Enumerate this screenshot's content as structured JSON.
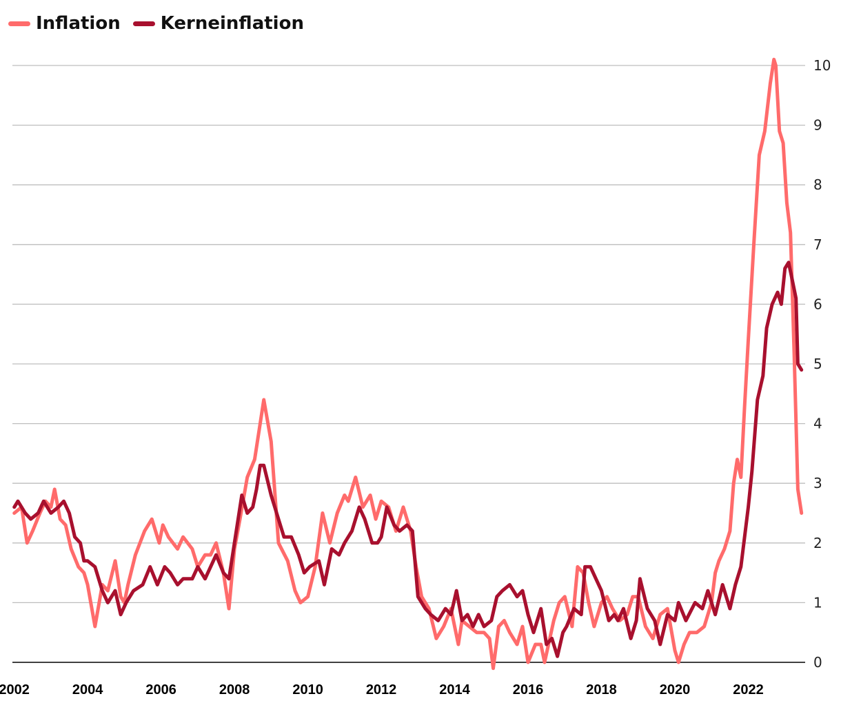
{
  "legend": {
    "inflation_label": "Inflation",
    "core_label": "Kerneinflation"
  },
  "colors": {
    "inflation": "#ff6b6b",
    "core": "#a8102e",
    "grid": "#bdbdbd",
    "axis": "#000000"
  },
  "chart_data": {
    "type": "line",
    "title": "",
    "xlabel": "",
    "ylabel": "",
    "xlim": [
      2001.95,
      2023.55
    ],
    "ylim": [
      0,
      10
    ],
    "x_ticks": [
      "2002",
      "2004",
      "2006",
      "2008",
      "2010",
      "2012",
      "2014",
      "2016",
      "2018",
      "2020",
      "2022"
    ],
    "y_ticks": [
      "0",
      "1",
      "2",
      "3",
      "4",
      "5",
      "6",
      "7",
      "8",
      "9",
      "10"
    ],
    "grid": true,
    "legend_position": "top-left",
    "series": [
      {
        "name": "Inflation",
        "x": [
          2002.0,
          2002.2,
          2002.35,
          2002.5,
          2002.7,
          2002.85,
          2003.0,
          2003.1,
          2003.25,
          2003.4,
          2003.55,
          2003.75,
          2003.9,
          2004.0,
          2004.2,
          2004.4,
          2004.55,
          2004.75,
          2004.9,
          2005.0,
          2005.1,
          2005.3,
          2005.55,
          2005.75,
          2005.95,
          2006.05,
          2006.2,
          2006.45,
          2006.6,
          2006.85,
          2007.0,
          2007.2,
          2007.35,
          2007.5,
          2007.7,
          2007.85,
          2008.0,
          2008.15,
          2008.35,
          2008.55,
          2008.7,
          2008.8,
          2009.0,
          2009.2,
          2009.45,
          2009.65,
          2009.8,
          2010.0,
          2010.2,
          2010.4,
          2010.6,
          2010.8,
          2011.0,
          2011.1,
          2011.3,
          2011.5,
          2011.7,
          2011.85,
          2012.0,
          2012.2,
          2012.4,
          2012.6,
          2012.8,
          2012.95,
          2013.1,
          2013.3,
          2013.5,
          2013.7,
          2013.9,
          2014.1,
          2014.2,
          2014.4,
          2014.6,
          2014.8,
          2014.95,
          2015.05,
          2015.2,
          2015.35,
          2015.5,
          2015.7,
          2015.85,
          2016.0,
          2016.2,
          2016.35,
          2016.45,
          2016.7,
          2016.85,
          2017.0,
          2017.2,
          2017.35,
          2017.5,
          2017.65,
          2017.8,
          2018.0,
          2018.15,
          2018.3,
          2018.5,
          2018.7,
          2018.85,
          2019.0,
          2019.2,
          2019.4,
          2019.6,
          2019.8,
          2020.0,
          2020.1,
          2020.25,
          2020.4,
          2020.6,
          2020.8,
          2021.0,
          2021.1,
          2021.2,
          2021.35,
          2021.5,
          2021.6,
          2021.7,
          2021.8,
          2021.9,
          2022.0,
          2022.15,
          2022.3,
          2022.45,
          2022.6,
          2022.7,
          2022.75,
          2022.85,
          2022.95,
          2023.05,
          2023.15,
          2023.25,
          2023.35,
          2023.45
        ],
        "values": [
          2.5,
          2.6,
          2.0,
          2.2,
          2.5,
          2.7,
          2.6,
          2.9,
          2.4,
          2.3,
          1.9,
          1.6,
          1.5,
          1.3,
          0.6,
          1.3,
          1.2,
          1.7,
          1.1,
          1.0,
          1.3,
          1.8,
          2.2,
          2.4,
          2.0,
          2.3,
          2.1,
          1.9,
          2.1,
          1.9,
          1.6,
          1.8,
          1.8,
          2.0,
          1.5,
          0.9,
          1.9,
          2.4,
          3.1,
          3.4,
          4.0,
          4.4,
          3.7,
          2.0,
          1.7,
          1.2,
          1.0,
          1.1,
          1.6,
          2.5,
          2.0,
          2.5,
          2.8,
          2.7,
          3.1,
          2.6,
          2.8,
          2.4,
          2.7,
          2.6,
          2.2,
          2.6,
          2.2,
          1.6,
          1.1,
          0.9,
          0.4,
          0.6,
          0.9,
          0.3,
          0.7,
          0.6,
          0.5,
          0.5,
          0.4,
          -0.1,
          0.6,
          0.7,
          0.5,
          0.3,
          0.6,
          0.0,
          0.3,
          0.3,
          0.0,
          0.7,
          1.0,
          1.1,
          0.6,
          1.6,
          1.5,
          1.0,
          0.6,
          1.0,
          1.1,
          0.9,
          0.7,
          0.8,
          1.1,
          1.1,
          0.6,
          0.4,
          0.8,
          0.9,
          0.2,
          0.0,
          0.3,
          0.5,
          0.5,
          0.6,
          1.0,
          1.5,
          1.7,
          1.9,
          2.2,
          3.0,
          3.4,
          3.1,
          4.3,
          5.4,
          7.0,
          8.5,
          8.9,
          9.7,
          10.1,
          10.0,
          8.9,
          8.7,
          7.7,
          7.2,
          5.2,
          2.9,
          2.5
        ]
      },
      {
        "name": "Kerneinflation",
        "x": [
          2002.0,
          2002.1,
          2002.3,
          2002.45,
          2002.65,
          2002.8,
          2003.0,
          2003.2,
          2003.35,
          2003.5,
          2003.65,
          2003.8,
          2003.9,
          2004.0,
          2004.2,
          2004.4,
          2004.55,
          2004.75,
          2004.9,
          2005.05,
          2005.25,
          2005.5,
          2005.7,
          2005.9,
          2006.1,
          2006.25,
          2006.45,
          2006.6,
          2006.85,
          2007.0,
          2007.2,
          2007.35,
          2007.5,
          2007.7,
          2007.85,
          2008.0,
          2008.2,
          2008.35,
          2008.5,
          2008.6,
          2008.7,
          2008.8,
          2009.0,
          2009.15,
          2009.35,
          2009.55,
          2009.75,
          2009.9,
          2010.05,
          2010.3,
          2010.45,
          2010.65,
          2010.85,
          2011.0,
          2011.2,
          2011.4,
          2011.55,
          2011.75,
          2011.9,
          2012.0,
          2012.15,
          2012.35,
          2012.5,
          2012.7,
          2012.85,
          2013.0,
          2013.2,
          2013.35,
          2013.55,
          2013.75,
          2013.9,
          2014.05,
          2014.2,
          2014.35,
          2014.5,
          2014.65,
          2014.8,
          2015.0,
          2015.15,
          2015.3,
          2015.5,
          2015.7,
          2015.85,
          2016.0,
          2016.15,
          2016.35,
          2016.5,
          2016.65,
          2016.8,
          2016.95,
          2017.05,
          2017.25,
          2017.45,
          2017.55,
          2017.7,
          2017.85,
          2018.0,
          2018.2,
          2018.35,
          2018.45,
          2018.6,
          2018.8,
          2018.95,
          2019.05,
          2019.25,
          2019.45,
          2019.6,
          2019.8,
          2020.0,
          2020.1,
          2020.3,
          2020.55,
          2020.75,
          2020.9,
          2021.1,
          2021.3,
          2021.5,
          2021.65,
          2021.8,
          2022.0,
          2022.1,
          2022.25,
          2022.4,
          2022.5,
          2022.65,
          2022.8,
          2022.9,
          2023.0,
          2023.1,
          2023.2,
          2023.3,
          2023.35,
          2023.45
        ],
        "values": [
          2.6,
          2.7,
          2.5,
          2.4,
          2.5,
          2.7,
          2.5,
          2.6,
          2.7,
          2.5,
          2.1,
          2.0,
          1.7,
          1.7,
          1.6,
          1.2,
          1.0,
          1.2,
          0.8,
          1.0,
          1.2,
          1.3,
          1.6,
          1.3,
          1.6,
          1.5,
          1.3,
          1.4,
          1.4,
          1.6,
          1.4,
          1.6,
          1.8,
          1.5,
          1.4,
          2.0,
          2.8,
          2.5,
          2.6,
          2.9,
          3.3,
          3.3,
          2.8,
          2.5,
          2.1,
          2.1,
          1.8,
          1.5,
          1.6,
          1.7,
          1.3,
          1.9,
          1.8,
          2.0,
          2.2,
          2.6,
          2.4,
          2.0,
          2.0,
          2.1,
          2.6,
          2.3,
          2.2,
          2.3,
          2.2,
          1.1,
          0.9,
          0.8,
          0.7,
          0.9,
          0.8,
          1.2,
          0.7,
          0.8,
          0.6,
          0.8,
          0.6,
          0.7,
          1.1,
          1.2,
          1.3,
          1.1,
          1.2,
          0.8,
          0.5,
          0.9,
          0.3,
          0.4,
          0.1,
          0.5,
          0.6,
          0.9,
          0.8,
          1.6,
          1.6,
          1.4,
          1.2,
          0.7,
          0.8,
          0.7,
          0.9,
          0.4,
          0.7,
          1.4,
          0.9,
          0.7,
          0.3,
          0.8,
          0.7,
          1.0,
          0.7,
          1.0,
          0.9,
          1.2,
          0.8,
          1.3,
          0.9,
          1.3,
          1.6,
          2.6,
          3.2,
          4.4,
          4.8,
          5.6,
          6.0,
          6.2,
          6.0,
          6.6,
          6.7,
          6.4,
          6.1,
          5.0,
          4.9
        ]
      }
    ]
  }
}
